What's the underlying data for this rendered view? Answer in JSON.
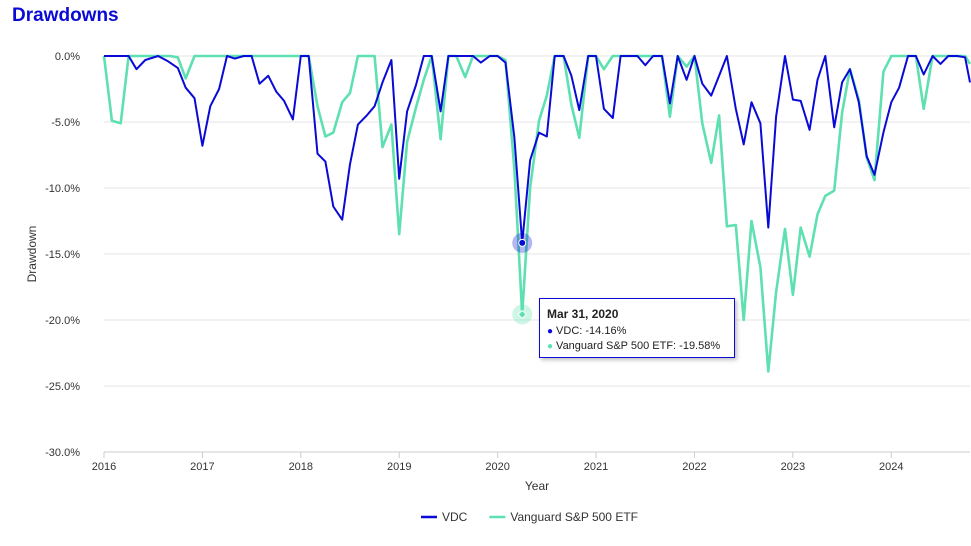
{
  "chart_data": {
    "type": "line",
    "title": "Drawdowns",
    "xlabel": "Year",
    "ylabel": "Drawdown",
    "ylim": [
      -30,
      0
    ],
    "y_ticks": [
      "0.0%",
      "-5.0%",
      "-10.0%",
      "-15.0%",
      "-20.0%",
      "-25.0%",
      "-30.0%"
    ],
    "x_ticks": [
      "2016",
      "2017",
      "2018",
      "2019",
      "2020",
      "2021",
      "2022",
      "2023",
      "2024"
    ],
    "grid": true,
    "legend_position": "bottom-center",
    "colors": {
      "VDC": "#0a0ad6",
      "sp500": "#5ee0b0"
    },
    "series": [
      {
        "name": "VDC",
        "points": [
          [
            2016.0,
            0.0
          ],
          [
            2016.1,
            0.0
          ],
          [
            2016.25,
            0.0
          ],
          [
            2016.33,
            -1.0
          ],
          [
            2016.42,
            -0.3
          ],
          [
            2016.55,
            0.0
          ],
          [
            2016.65,
            -0.4
          ],
          [
            2016.75,
            -0.9
          ],
          [
            2016.83,
            -2.4
          ],
          [
            2016.92,
            -3.2
          ],
          [
            2017.0,
            -6.8
          ],
          [
            2017.08,
            -3.8
          ],
          [
            2017.17,
            -2.5
          ],
          [
            2017.25,
            0.0
          ],
          [
            2017.33,
            -0.2
          ],
          [
            2017.42,
            0.0
          ],
          [
            2017.5,
            0.0
          ],
          [
            2017.58,
            -2.1
          ],
          [
            2017.67,
            -1.5
          ],
          [
            2017.75,
            -2.7
          ],
          [
            2017.83,
            -3.4
          ],
          [
            2017.92,
            -4.8
          ],
          [
            2018.0,
            0.0
          ],
          [
            2018.08,
            0.0
          ],
          [
            2018.17,
            -7.4
          ],
          [
            2018.25,
            -8.0
          ],
          [
            2018.33,
            -11.4
          ],
          [
            2018.42,
            -12.4
          ],
          [
            2018.5,
            -8.2
          ],
          [
            2018.58,
            -5.2
          ],
          [
            2018.67,
            -4.5
          ],
          [
            2018.75,
            -3.8
          ],
          [
            2018.83,
            -2.0
          ],
          [
            2018.92,
            -0.3
          ],
          [
            2019.0,
            -9.3
          ],
          [
            2019.08,
            -4.2
          ],
          [
            2019.17,
            -2.2
          ],
          [
            2019.25,
            0.0
          ],
          [
            2019.33,
            0.0
          ],
          [
            2019.42,
            -4.2
          ],
          [
            2019.5,
            0.0
          ],
          [
            2019.58,
            0.0
          ],
          [
            2019.67,
            0.0
          ],
          [
            2019.75,
            0.0
          ],
          [
            2019.83,
            -0.5
          ],
          [
            2019.92,
            0.0
          ],
          [
            2020.0,
            0.0
          ],
          [
            2020.08,
            -0.5
          ],
          [
            2020.17,
            -6.2
          ],
          [
            2020.25,
            -14.16
          ],
          [
            2020.33,
            -7.9
          ],
          [
            2020.42,
            -5.8
          ],
          [
            2020.5,
            -6.1
          ],
          [
            2020.58,
            0.0
          ],
          [
            2020.67,
            0.0
          ],
          [
            2020.75,
            -1.5
          ],
          [
            2020.83,
            -4.1
          ],
          [
            2020.92,
            0.0
          ],
          [
            2021.0,
            0.0
          ],
          [
            2021.08,
            -4.0
          ],
          [
            2021.17,
            -4.7
          ],
          [
            2021.25,
            0.0
          ],
          [
            2021.33,
            0.0
          ],
          [
            2021.42,
            0.0
          ],
          [
            2021.5,
            -0.7
          ],
          [
            2021.58,
            0.0
          ],
          [
            2021.67,
            0.0
          ],
          [
            2021.75,
            -3.6
          ],
          [
            2021.83,
            0.0
          ],
          [
            2021.92,
            -1.8
          ],
          [
            2022.0,
            0.0
          ],
          [
            2022.08,
            -2.1
          ],
          [
            2022.17,
            -3.0
          ],
          [
            2022.25,
            -1.5
          ],
          [
            2022.33,
            0.0
          ],
          [
            2022.42,
            -4.0
          ],
          [
            2022.5,
            -6.7
          ],
          [
            2022.58,
            -3.5
          ],
          [
            2022.67,
            -5.1
          ],
          [
            2022.75,
            -13.0
          ],
          [
            2022.83,
            -4.6
          ],
          [
            2022.92,
            0.0
          ],
          [
            2023.0,
            -3.3
          ],
          [
            2023.08,
            -3.4
          ],
          [
            2023.17,
            -5.6
          ],
          [
            2023.25,
            -1.8
          ],
          [
            2023.33,
            0.0
          ],
          [
            2023.42,
            -5.4
          ],
          [
            2023.5,
            -2.0
          ],
          [
            2023.58,
            -1.0
          ],
          [
            2023.67,
            -3.5
          ],
          [
            2023.75,
            -7.6
          ],
          [
            2023.83,
            -9.0
          ],
          [
            2023.92,
            -5.8
          ],
          [
            2024.0,
            -3.5
          ],
          [
            2024.08,
            -2.4
          ],
          [
            2024.17,
            0.0
          ],
          [
            2024.25,
            0.0
          ],
          [
            2024.33,
            -1.4
          ],
          [
            2024.42,
            0.0
          ],
          [
            2024.5,
            -0.6
          ],
          [
            2024.58,
            0.0
          ],
          [
            2024.67,
            0.0
          ],
          [
            2024.75,
            -0.1
          ],
          [
            2024.8,
            -2.0
          ]
        ]
      },
      {
        "name": "Vanguard S&P 500 ETF",
        "points": [
          [
            2016.0,
            0.0
          ],
          [
            2016.08,
            -4.9
          ],
          [
            2016.17,
            -5.1
          ],
          [
            2016.25,
            0.0
          ],
          [
            2016.33,
            0.0
          ],
          [
            2016.42,
            0.0
          ],
          [
            2016.5,
            0.0
          ],
          [
            2016.58,
            0.0
          ],
          [
            2016.67,
            0.0
          ],
          [
            2016.75,
            -0.1
          ],
          [
            2016.83,
            -1.7
          ],
          [
            2016.92,
            0.0
          ],
          [
            2017.0,
            0.0
          ],
          [
            2017.08,
            0.0
          ],
          [
            2017.17,
            0.0
          ],
          [
            2017.25,
            0.0
          ],
          [
            2017.5,
            0.0
          ],
          [
            2017.75,
            0.0
          ],
          [
            2018.0,
            0.0
          ],
          [
            2018.08,
            0.0
          ],
          [
            2018.17,
            -3.8
          ],
          [
            2018.25,
            -6.1
          ],
          [
            2018.33,
            -5.8
          ],
          [
            2018.42,
            -3.5
          ],
          [
            2018.5,
            -2.8
          ],
          [
            2018.58,
            0.0
          ],
          [
            2018.67,
            0.0
          ],
          [
            2018.75,
            0.0
          ],
          [
            2018.83,
            -6.9
          ],
          [
            2018.92,
            -5.2
          ],
          [
            2019.0,
            -13.5
          ],
          [
            2019.08,
            -6.5
          ],
          [
            2019.17,
            -3.9
          ],
          [
            2019.25,
            -1.8
          ],
          [
            2019.33,
            0.0
          ],
          [
            2019.42,
            -6.3
          ],
          [
            2019.5,
            0.0
          ],
          [
            2019.58,
            0.0
          ],
          [
            2019.67,
            -1.6
          ],
          [
            2019.75,
            0.0
          ],
          [
            2019.83,
            0.0
          ],
          [
            2019.92,
            0.0
          ],
          [
            2020.0,
            0.0
          ],
          [
            2020.08,
            -0.3
          ],
          [
            2020.17,
            -8.6
          ],
          [
            2020.25,
            -19.58
          ],
          [
            2020.33,
            -10.0
          ],
          [
            2020.42,
            -4.9
          ],
          [
            2020.5,
            -3.0
          ],
          [
            2020.58,
            0.0
          ],
          [
            2020.67,
            0.0
          ],
          [
            2020.75,
            -3.7
          ],
          [
            2020.83,
            -6.2
          ],
          [
            2020.92,
            0.0
          ],
          [
            2021.0,
            0.0
          ],
          [
            2021.08,
            -1.0
          ],
          [
            2021.17,
            0.0
          ],
          [
            2021.25,
            0.0
          ],
          [
            2021.5,
            0.0
          ],
          [
            2021.67,
            0.0
          ],
          [
            2021.75,
            -4.6
          ],
          [
            2021.83,
            0.0
          ],
          [
            2021.92,
            -0.8
          ],
          [
            2022.0,
            0.0
          ],
          [
            2022.08,
            -5.1
          ],
          [
            2022.17,
            -8.1
          ],
          [
            2022.25,
            -4.5
          ],
          [
            2022.33,
            -12.9
          ],
          [
            2022.42,
            -12.8
          ],
          [
            2022.5,
            -20.0
          ],
          [
            2022.58,
            -12.5
          ],
          [
            2022.67,
            -16.0
          ],
          [
            2022.75,
            -23.9
          ],
          [
            2022.83,
            -17.9
          ],
          [
            2022.92,
            -13.1
          ],
          [
            2023.0,
            -18.1
          ],
          [
            2023.08,
            -13.0
          ],
          [
            2023.17,
            -15.2
          ],
          [
            2023.25,
            -12.0
          ],
          [
            2023.33,
            -10.6
          ],
          [
            2023.42,
            -10.2
          ],
          [
            2023.5,
            -4.3
          ],
          [
            2023.58,
            -1.0
          ],
          [
            2023.67,
            -3.3
          ],
          [
            2023.75,
            -7.7
          ],
          [
            2023.83,
            -9.4
          ],
          [
            2023.92,
            -1.2
          ],
          [
            2024.0,
            0.0
          ],
          [
            2024.08,
            0.0
          ],
          [
            2024.17,
            0.0
          ],
          [
            2024.25,
            0.0
          ],
          [
            2024.33,
            -4.0
          ],
          [
            2024.42,
            0.0
          ],
          [
            2024.5,
            0.0
          ],
          [
            2024.58,
            0.0
          ],
          [
            2024.67,
            0.0
          ],
          [
            2024.75,
            0.0
          ],
          [
            2024.8,
            -0.6
          ]
        ]
      }
    ],
    "tooltip": {
      "date": "Mar 31, 2020",
      "x": 2020.25,
      "rows": [
        {
          "label": "VDC: -14.16%",
          "y": -14.16
        },
        {
          "label": "Vanguard S&P 500 ETF: -19.58%",
          "y": -19.58
        }
      ]
    },
    "legend": [
      "VDC",
      "Vanguard S&P 500 ETF"
    ]
  }
}
